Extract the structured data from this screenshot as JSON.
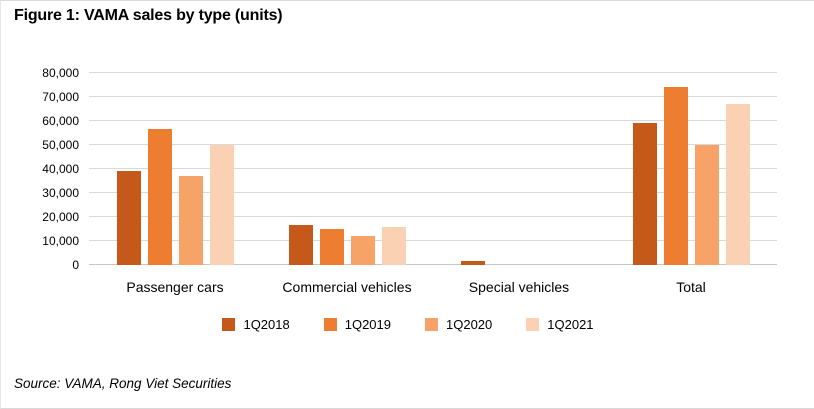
{
  "figure": {
    "title": "Figure 1: VAMA sales by type (units)",
    "source": "Source: VAMA, Rong Viet Securities"
  },
  "chart_data": {
    "type": "bar",
    "title": "Figure 1: VAMA sales by type (units)",
    "categories": [
      "Passenger cars",
      "Commercial vehicles",
      "Special vehicles",
      "Total"
    ],
    "series": [
      {
        "name": "1Q2018",
        "color": "#C4591A",
        "values": [
          39000,
          16500,
          1700,
          59000
        ]
      },
      {
        "name": "1Q2019",
        "color": "#ED7D31",
        "values": [
          56500,
          15000,
          0,
          74000
        ]
      },
      {
        "name": "1Q2020",
        "color": "#F7A266",
        "values": [
          37000,
          12000,
          0,
          50000
        ]
      },
      {
        "name": "1Q2021",
        "color": "#FBD1B3",
        "values": [
          50000,
          16000,
          0,
          67000
        ]
      }
    ],
    "xlabel": "",
    "ylabel": "",
    "ylim": [
      0,
      80000
    ],
    "ytick_step": 10000,
    "yticks": [
      "0",
      "10,000",
      "20,000",
      "30,000",
      "40,000",
      "50,000",
      "60,000",
      "70,000",
      "80,000"
    ],
    "grid": true,
    "legend_position": "bottom",
    "gridline_color": "#d9d9d9",
    "axis_line_color": "#c6c6c6"
  }
}
